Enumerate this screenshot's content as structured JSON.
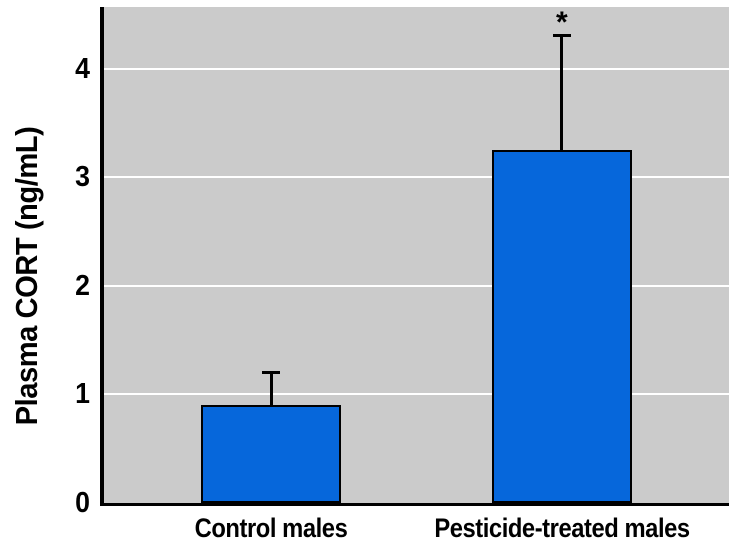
{
  "chart_data": {
    "type": "bar",
    "title": "",
    "xlabel": "",
    "ylabel": "Plasma CORT (ng/mL)",
    "categories": [
      "Control males",
      "Pesticide-treated males"
    ],
    "values": [
      0.9,
      3.25
    ],
    "errors_upper": [
      0.32,
      1.07
    ],
    "significance": [
      "",
      "*"
    ],
    "yticks": [
      0,
      1,
      2,
      3,
      4
    ],
    "ylim": [
      0,
      4.57
    ],
    "grid": "horizontal white lines at integer ticks",
    "legend": "none",
    "colors": {
      "bar_fill": "#0667DB",
      "bar_border": "#000000",
      "plot_background": "#CBCBCB",
      "gridline": "#FFFFFF",
      "axis": "#000000",
      "text": "#000000",
      "figure_background": "#FFFFFF"
    }
  }
}
